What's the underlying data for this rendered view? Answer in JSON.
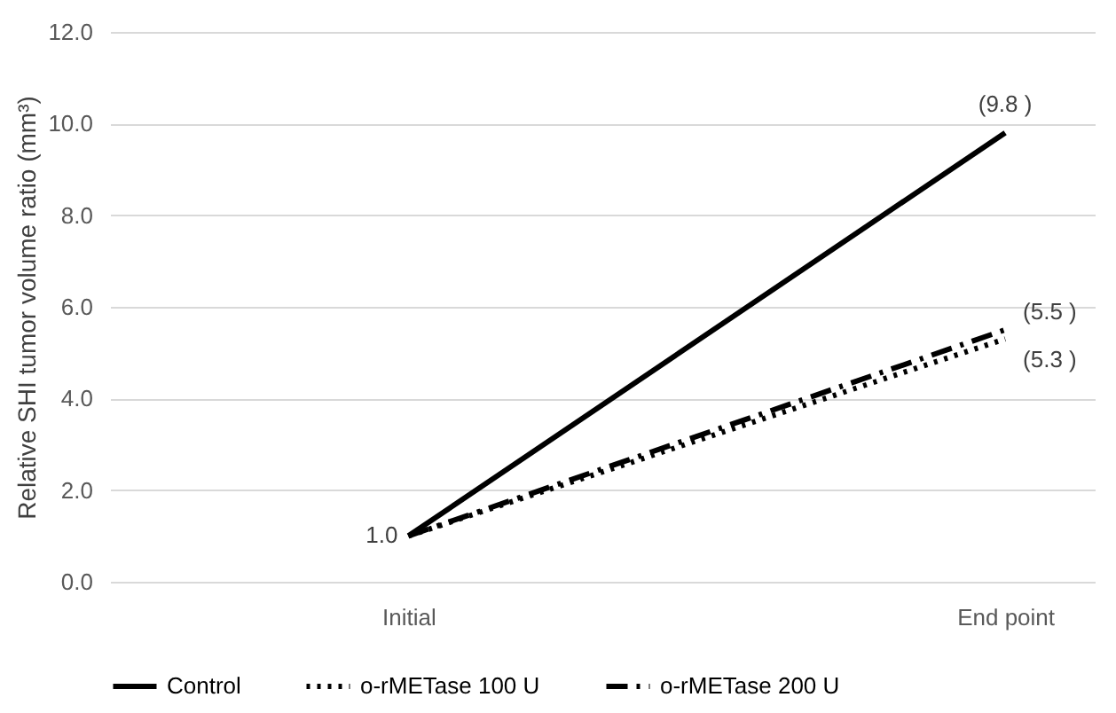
{
  "chart_data": {
    "type": "line",
    "ylabel": "Relative  SHI tumor volume ratio (mm³)",
    "categories": [
      "Initial",
      "End point"
    ],
    "series": [
      {
        "name": "Control",
        "color": "#000000",
        "values": [
          1.0,
          9.8
        ],
        "line_style": "solid"
      },
      {
        "name": "o-rMETase 100 U",
        "color": "#000000",
        "values": [
          1.0,
          5.3
        ],
        "line_style": "dotted"
      },
      {
        "name": "o-rMETase 200 U",
        "color": "#000000",
        "values": [
          1.0,
          5.5
        ],
        "line_style": "dashed"
      }
    ],
    "ylim": [
      0,
      12
    ],
    "yticks": [
      {
        "value": 0,
        "label": "0.0"
      },
      {
        "value": 2,
        "label": "2.0"
      },
      {
        "value": 4,
        "label": "4.0"
      },
      {
        "value": 6,
        "label": "6.0"
      },
      {
        "value": 8,
        "label": "8.0"
      },
      {
        "value": 10,
        "label": "10.0"
      },
      {
        "value": 12,
        "label": "12.0"
      }
    ],
    "grid": "y",
    "legend": "bottom",
    "marker": "none",
    "annotations": [
      {
        "text": "1.0",
        "x": "Initial",
        "y": 1.0
      },
      {
        "text": "(9.8 )",
        "x": "End point",
        "y": 9.8
      },
      {
        "text": "(5.5 )",
        "x": "End point",
        "y": 5.5
      },
      {
        "text": "(5.3 )",
        "x": "End point",
        "y": 5.3
      }
    ]
  }
}
